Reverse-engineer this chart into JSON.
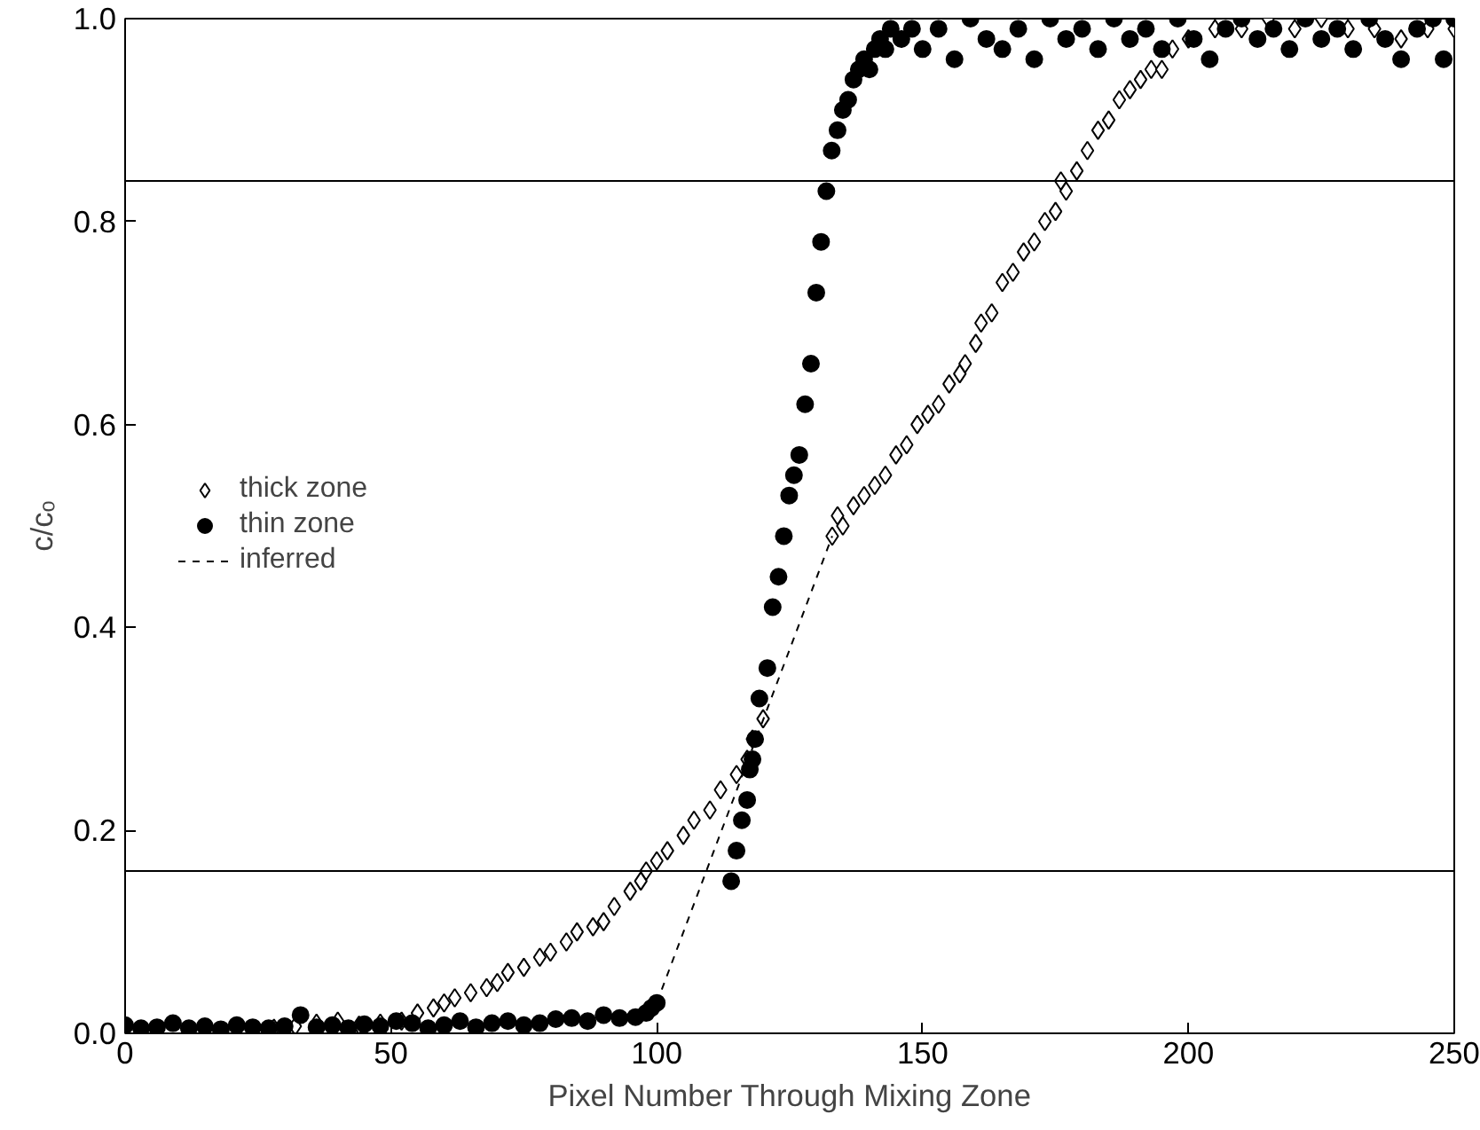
{
  "chart_data": {
    "type": "scatter",
    "xlabel": "Pixel Number Through Mixing Zone",
    "ylabel": "c/cₒ",
    "xlim": [
      0,
      250
    ],
    "ylim": [
      0,
      1.0
    ],
    "xticks": [
      0,
      50,
      100,
      150,
      200,
      250
    ],
    "yticks": [
      {
        "value": 0,
        "label": "0.0"
      },
      0.2,
      0.4,
      0.6,
      0.8,
      {
        "value": 1.0,
        "label": "1.0"
      }
    ],
    "grid": false,
    "legend": "left",
    "ref_lines": [
      {
        "axis": "y",
        "value": 0.16,
        "color": "#000000"
      },
      {
        "axis": "y",
        "value": 0.84,
        "color": "#000000"
      }
    ],
    "series": [
      {
        "name": "thick zone",
        "color": "#000000",
        "marker": "diamond",
        "x": [
          28,
          32,
          36,
          40,
          44,
          48,
          52,
          55,
          58,
          60,
          62,
          65,
          68,
          70,
          72,
          75,
          78,
          80,
          83,
          85,
          88,
          90,
          92,
          95,
          97,
          98,
          100,
          102,
          105,
          107,
          110,
          112,
          115,
          117,
          118,
          120,
          133,
          134,
          135,
          137,
          139,
          141,
          143,
          145,
          147,
          149,
          151,
          153,
          155,
          157,
          158,
          160,
          161,
          163,
          165,
          167,
          169,
          171,
          173,
          175,
          176,
          177,
          179,
          181,
          183,
          185,
          187,
          189,
          191,
          193,
          195,
          197,
          200,
          205,
          210,
          215,
          220,
          225,
          230,
          235,
          240,
          245,
          250
        ],
        "values": [
          0.005,
          0.007,
          0.01,
          0.012,
          0.008,
          0.01,
          0.012,
          0.02,
          0.025,
          0.03,
          0.035,
          0.04,
          0.045,
          0.05,
          0.06,
          0.065,
          0.075,
          0.08,
          0.09,
          0.1,
          0.105,
          0.11,
          0.125,
          0.14,
          0.15,
          0.16,
          0.17,
          0.18,
          0.195,
          0.21,
          0.22,
          0.24,
          0.255,
          0.27,
          0.29,
          0.31,
          0.49,
          0.51,
          0.5,
          0.52,
          0.53,
          0.54,
          0.55,
          0.57,
          0.58,
          0.6,
          0.61,
          0.62,
          0.64,
          0.65,
          0.66,
          0.68,
          0.7,
          0.71,
          0.74,
          0.75,
          0.77,
          0.78,
          0.8,
          0.81,
          0.84,
          0.83,
          0.85,
          0.87,
          0.89,
          0.9,
          0.92,
          0.93,
          0.94,
          0.95,
          0.95,
          0.97,
          0.98,
          0.99,
          0.99,
          1.0,
          0.99,
          1.0,
          0.99,
          0.99,
          0.98,
          0.99,
          0.99
        ]
      },
      {
        "name": "thin zone",
        "color": "#000000",
        "marker": "circle",
        "x": [
          0,
          3,
          6,
          9,
          12,
          15,
          18,
          21,
          24,
          27,
          30,
          33,
          36,
          39,
          42,
          45,
          48,
          51,
          54,
          57,
          60,
          63,
          66,
          69,
          72,
          75,
          78,
          81,
          84,
          87,
          90,
          93,
          96,
          98,
          99,
          100,
          114,
          115,
          116,
          117,
          117.5,
          118,
          118.5,
          119.3,
          120.8,
          121.8,
          122.9,
          123.9,
          124.9,
          125.8,
          126.8,
          127.9,
          129,
          130,
          130.9,
          131.9,
          132.9,
          134,
          135,
          136,
          137,
          138,
          139,
          140,
          141,
          142,
          143,
          144,
          146,
          148,
          150,
          153,
          156,
          159,
          162,
          165,
          168,
          171,
          174,
          177,
          180,
          183,
          186,
          189,
          192,
          195,
          198,
          201,
          204,
          207,
          210,
          213,
          216,
          219,
          222,
          225,
          228,
          231,
          234,
          237,
          240,
          243,
          246,
          248,
          250
        ],
        "values": [
          0.008,
          0.005,
          0.006,
          0.01,
          0.005,
          0.007,
          0.004,
          0.008,
          0.006,
          0.005,
          0.007,
          0.018,
          0.006,
          0.008,
          0.005,
          0.009,
          0.007,
          0.012,
          0.01,
          0.005,
          0.008,
          0.012,
          0.006,
          0.01,
          0.012,
          0.008,
          0.01,
          0.014,
          0.015,
          0.012,
          0.018,
          0.015,
          0.016,
          0.02,
          0.025,
          0.03,
          0.15,
          0.18,
          0.21,
          0.23,
          0.26,
          0.27,
          0.29,
          0.33,
          0.36,
          0.42,
          0.45,
          0.49,
          0.53,
          0.55,
          0.57,
          0.62,
          0.66,
          0.73,
          0.78,
          0.83,
          0.87,
          0.89,
          0.91,
          0.92,
          0.94,
          0.95,
          0.96,
          0.95,
          0.97,
          0.98,
          0.97,
          0.99,
          0.98,
          0.99,
          0.97,
          0.99,
          0.96,
          1.0,
          0.98,
          0.97,
          0.99,
          0.96,
          1.0,
          0.98,
          0.99,
          0.97,
          1.0,
          0.98,
          0.99,
          0.97,
          1.0,
          0.98,
          0.96,
          0.99,
          1.0,
          0.98,
          0.99,
          0.97,
          1.0,
          0.98,
          0.99,
          0.97,
          1.0,
          0.98,
          0.96,
          0.99,
          1.0,
          0.96,
          1.0
        ]
      },
      {
        "name": "inferred",
        "type": "line",
        "color": "#000000",
        "marker": "none",
        "line_style": "dashed",
        "x": [
          100,
          133
        ],
        "values": [
          0.03,
          0.49
        ]
      }
    ]
  }
}
